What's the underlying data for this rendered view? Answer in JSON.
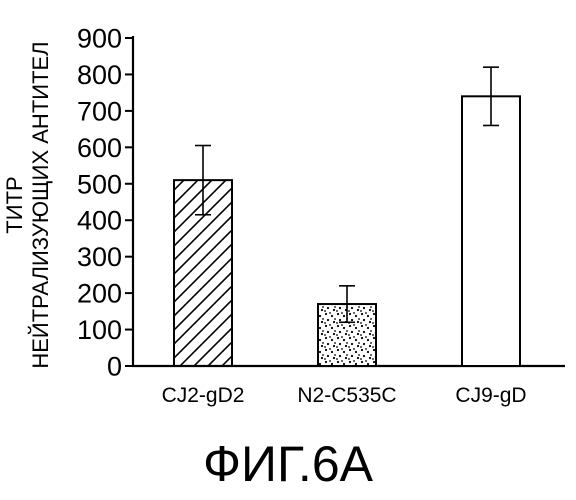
{
  "chart_data": {
    "type": "bar",
    "ylabel_lines": [
      "ТИТР",
      "НЕЙТРАЛИЗУЮЩИХ АНТИТЕЛ"
    ],
    "categories": [
      "CJ2-gD2",
      "N2-C535C",
      "CJ9-gD"
    ],
    "values": [
      510,
      170,
      740
    ],
    "errors": [
      95,
      50,
      80
    ],
    "bar_fills": [
      "diagonal-hatch",
      "stipple",
      "white"
    ],
    "ylim": [
      0,
      900
    ],
    "yticks": [
      0,
      100,
      200,
      300,
      400,
      500,
      600,
      700,
      800,
      900
    ],
    "grid": false,
    "bar_color": "#000000",
    "background": "#ffffff"
  },
  "caption": "ФИГ.6А"
}
